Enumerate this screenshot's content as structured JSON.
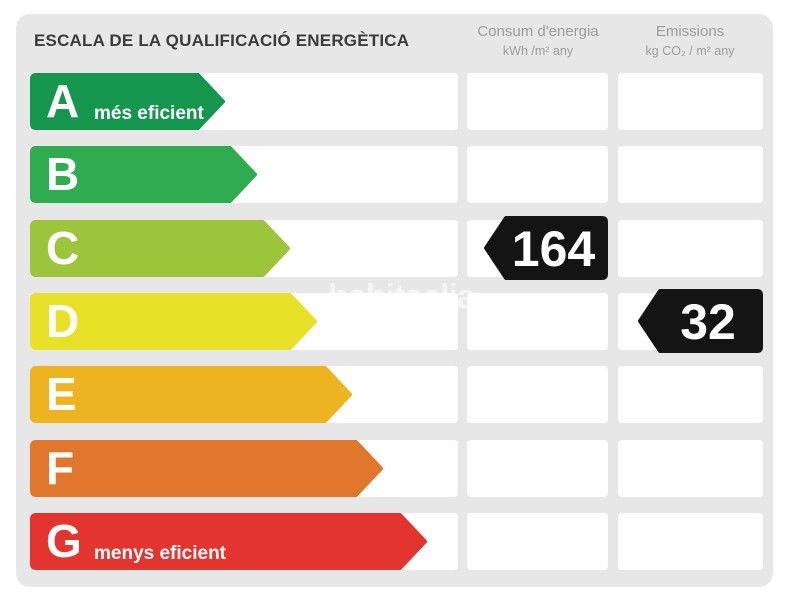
{
  "title": "ESCALA DE LA QUALIFICACIÓ ENERGÈTICA",
  "columns": {
    "consumption": {
      "title": "Consum d'energia",
      "unit": "kWh /m²  any"
    },
    "emissions": {
      "title": "Emissions",
      "unit": "kg CO₂ / m²  any"
    }
  },
  "scale": {
    "rows": [
      {
        "letter": "A",
        "note": "més eficient",
        "color": "#15964e",
        "arrow_width": 195
      },
      {
        "letter": "B",
        "note": "",
        "color": "#2fab50",
        "arrow_width": 227
      },
      {
        "letter": "C",
        "note": "",
        "color": "#9cc53c",
        "arrow_width": 260
      },
      {
        "letter": "D",
        "note": "",
        "color": "#e7e228",
        "arrow_width": 287
      },
      {
        "letter": "E",
        "note": "",
        "color": "#eeb320",
        "arrow_width": 322
      },
      {
        "letter": "F",
        "note": "",
        "color": "#e0772c",
        "arrow_width": 353
      },
      {
        "letter": "G",
        "note": "menys eficient",
        "color": "#e4342f",
        "arrow_width": 397
      }
    ]
  },
  "values": {
    "consumption": {
      "value": "164",
      "row": "C"
    },
    "emissions": {
      "value": "32",
      "row": "D"
    }
  },
  "watermark": "habitaclia",
  "colors": {
    "panel_bg": "#e7e7e7",
    "badge": "#141414",
    "title_text": "#3b3b3a",
    "header_text": "#9c9c9c"
  },
  "chart_data": {
    "type": "bar",
    "title": "ESCALA DE LA QUALIFICACIÓ ENERGÈTICA",
    "categories": [
      "A",
      "B",
      "C",
      "D",
      "E",
      "F",
      "G"
    ],
    "category_colors": [
      "#15964e",
      "#2fab50",
      "#9cc53c",
      "#e7e228",
      "#eeb320",
      "#e0772c",
      "#e4342f"
    ],
    "relative_bar_lengths": [
      195,
      227,
      260,
      287,
      322,
      353,
      397
    ],
    "series": [
      {
        "name": "Consum d'energia (kWh /m² any)",
        "rating": "C",
        "value": 164
      },
      {
        "name": "Emissions (kg CO₂ / m² any)",
        "rating": "D",
        "value": 32
      }
    ],
    "annotations": [
      "A = més eficient",
      "G = menys eficient"
    ],
    "legend_position": "top",
    "grid": false
  }
}
